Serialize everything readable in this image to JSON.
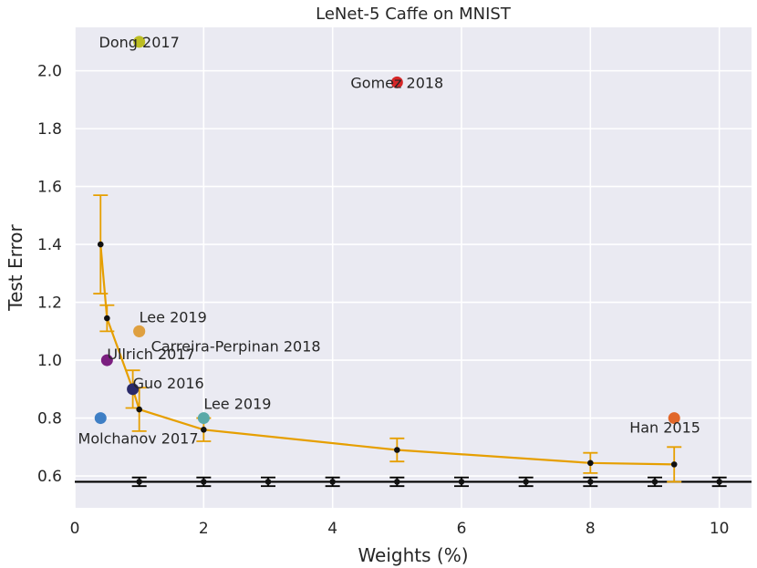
{
  "chart_data": {
    "type": "scatter",
    "title": "LeNet-5 Caffe on MNIST",
    "xlabel": "Weights (%)",
    "ylabel": "Test Error",
    "xlim": [
      0,
      10.5
    ],
    "ylim": [
      0.49,
      2.15
    ],
    "xticks": [
      0,
      2,
      4,
      6,
      8,
      10
    ],
    "yticks": [
      0.6,
      0.8,
      1.0,
      1.2,
      1.4,
      1.6,
      1.8,
      2.0
    ],
    "xtick_labels": [
      "0",
      "2",
      "4",
      "6",
      "8",
      "10"
    ],
    "ytick_labels": [
      "0.6",
      "0.8",
      "1.0",
      "1.2",
      "1.4",
      "1.6",
      "1.8",
      "2.0"
    ],
    "grid": true,
    "colors": {
      "background": "#eaeaf2",
      "grid": "#ffffff",
      "curve": "#e69f00",
      "baseline": "#000000"
    },
    "baseline": {
      "y": 0.58
    },
    "series": [
      {
        "name": "pruning-curve",
        "color": "#e69f00",
        "points": [
          {
            "x": 0.4,
            "y": 1.4,
            "err": 0.17
          },
          {
            "x": 0.5,
            "y": 1.145,
            "err": 0.045
          },
          {
            "x": 0.9,
            "y": 0.9,
            "err": 0.065
          },
          {
            "x": 1.0,
            "y": 0.83,
            "err": 0.075
          },
          {
            "x": 2.0,
            "y": 0.76,
            "err": 0.04
          },
          {
            "x": 5.0,
            "y": 0.69,
            "err": 0.04
          },
          {
            "x": 8.0,
            "y": 0.645,
            "err": 0.035
          },
          {
            "x": 9.3,
            "y": 0.64,
            "err": 0.06
          }
        ]
      },
      {
        "name": "baseline-points",
        "color": "#000000",
        "points": [
          {
            "x": 1.0,
            "y": 0.58,
            "err": 0.015
          },
          {
            "x": 2.0,
            "y": 0.58,
            "err": 0.015
          },
          {
            "x": 3.0,
            "y": 0.58,
            "err": 0.015
          },
          {
            "x": 4.0,
            "y": 0.58,
            "err": 0.015
          },
          {
            "x": 5.0,
            "y": 0.58,
            "err": 0.015
          },
          {
            "x": 6.0,
            "y": 0.58,
            "err": 0.015
          },
          {
            "x": 7.0,
            "y": 0.58,
            "err": 0.015
          },
          {
            "x": 8.0,
            "y": 0.58,
            "err": 0.015
          },
          {
            "x": 9.0,
            "y": 0.58,
            "err": 0.015
          },
          {
            "x": 10.0,
            "y": 0.58,
            "err": 0.015
          }
        ]
      }
    ],
    "methods": [
      {
        "label": "Dong 2017",
        "x": 1.0,
        "y": 2.1,
        "color": "#bcbd22",
        "label_pos": "on"
      },
      {
        "label": "Gomez 2018",
        "x": 5.0,
        "y": 1.96,
        "color": "#d62728",
        "label_pos": "on"
      },
      {
        "label": "Lee 2019",
        "x": 1.0,
        "y": 1.1,
        "color": "#dfa040",
        "label_pos": "above"
      },
      {
        "label": "Carreira-Perpinan 2018",
        "x": 1.0,
        "y": 1.1,
        "color": "#dfa040",
        "label_pos": "below-right"
      },
      {
        "label": "Ullrich 2017",
        "x": 0.5,
        "y": 1.0,
        "color": "#7b1f80",
        "label_pos": "right-up"
      },
      {
        "label": "Guo 2016",
        "x": 0.9,
        "y": 0.9,
        "color": "#2a2a6a",
        "label_pos": "right-up"
      },
      {
        "label": "Lee 2019",
        "x": 2.0,
        "y": 0.8,
        "color": "#5aa9a8",
        "label_pos": "above"
      },
      {
        "label": "Molchanov 2017",
        "x": 0.4,
        "y": 0.8,
        "color": "#3f7fc5",
        "label_pos": "below"
      },
      {
        "label": "Han 2015",
        "x": 9.3,
        "y": 0.8,
        "color": "#e1672a",
        "label_pos": "below-left"
      }
    ]
  }
}
